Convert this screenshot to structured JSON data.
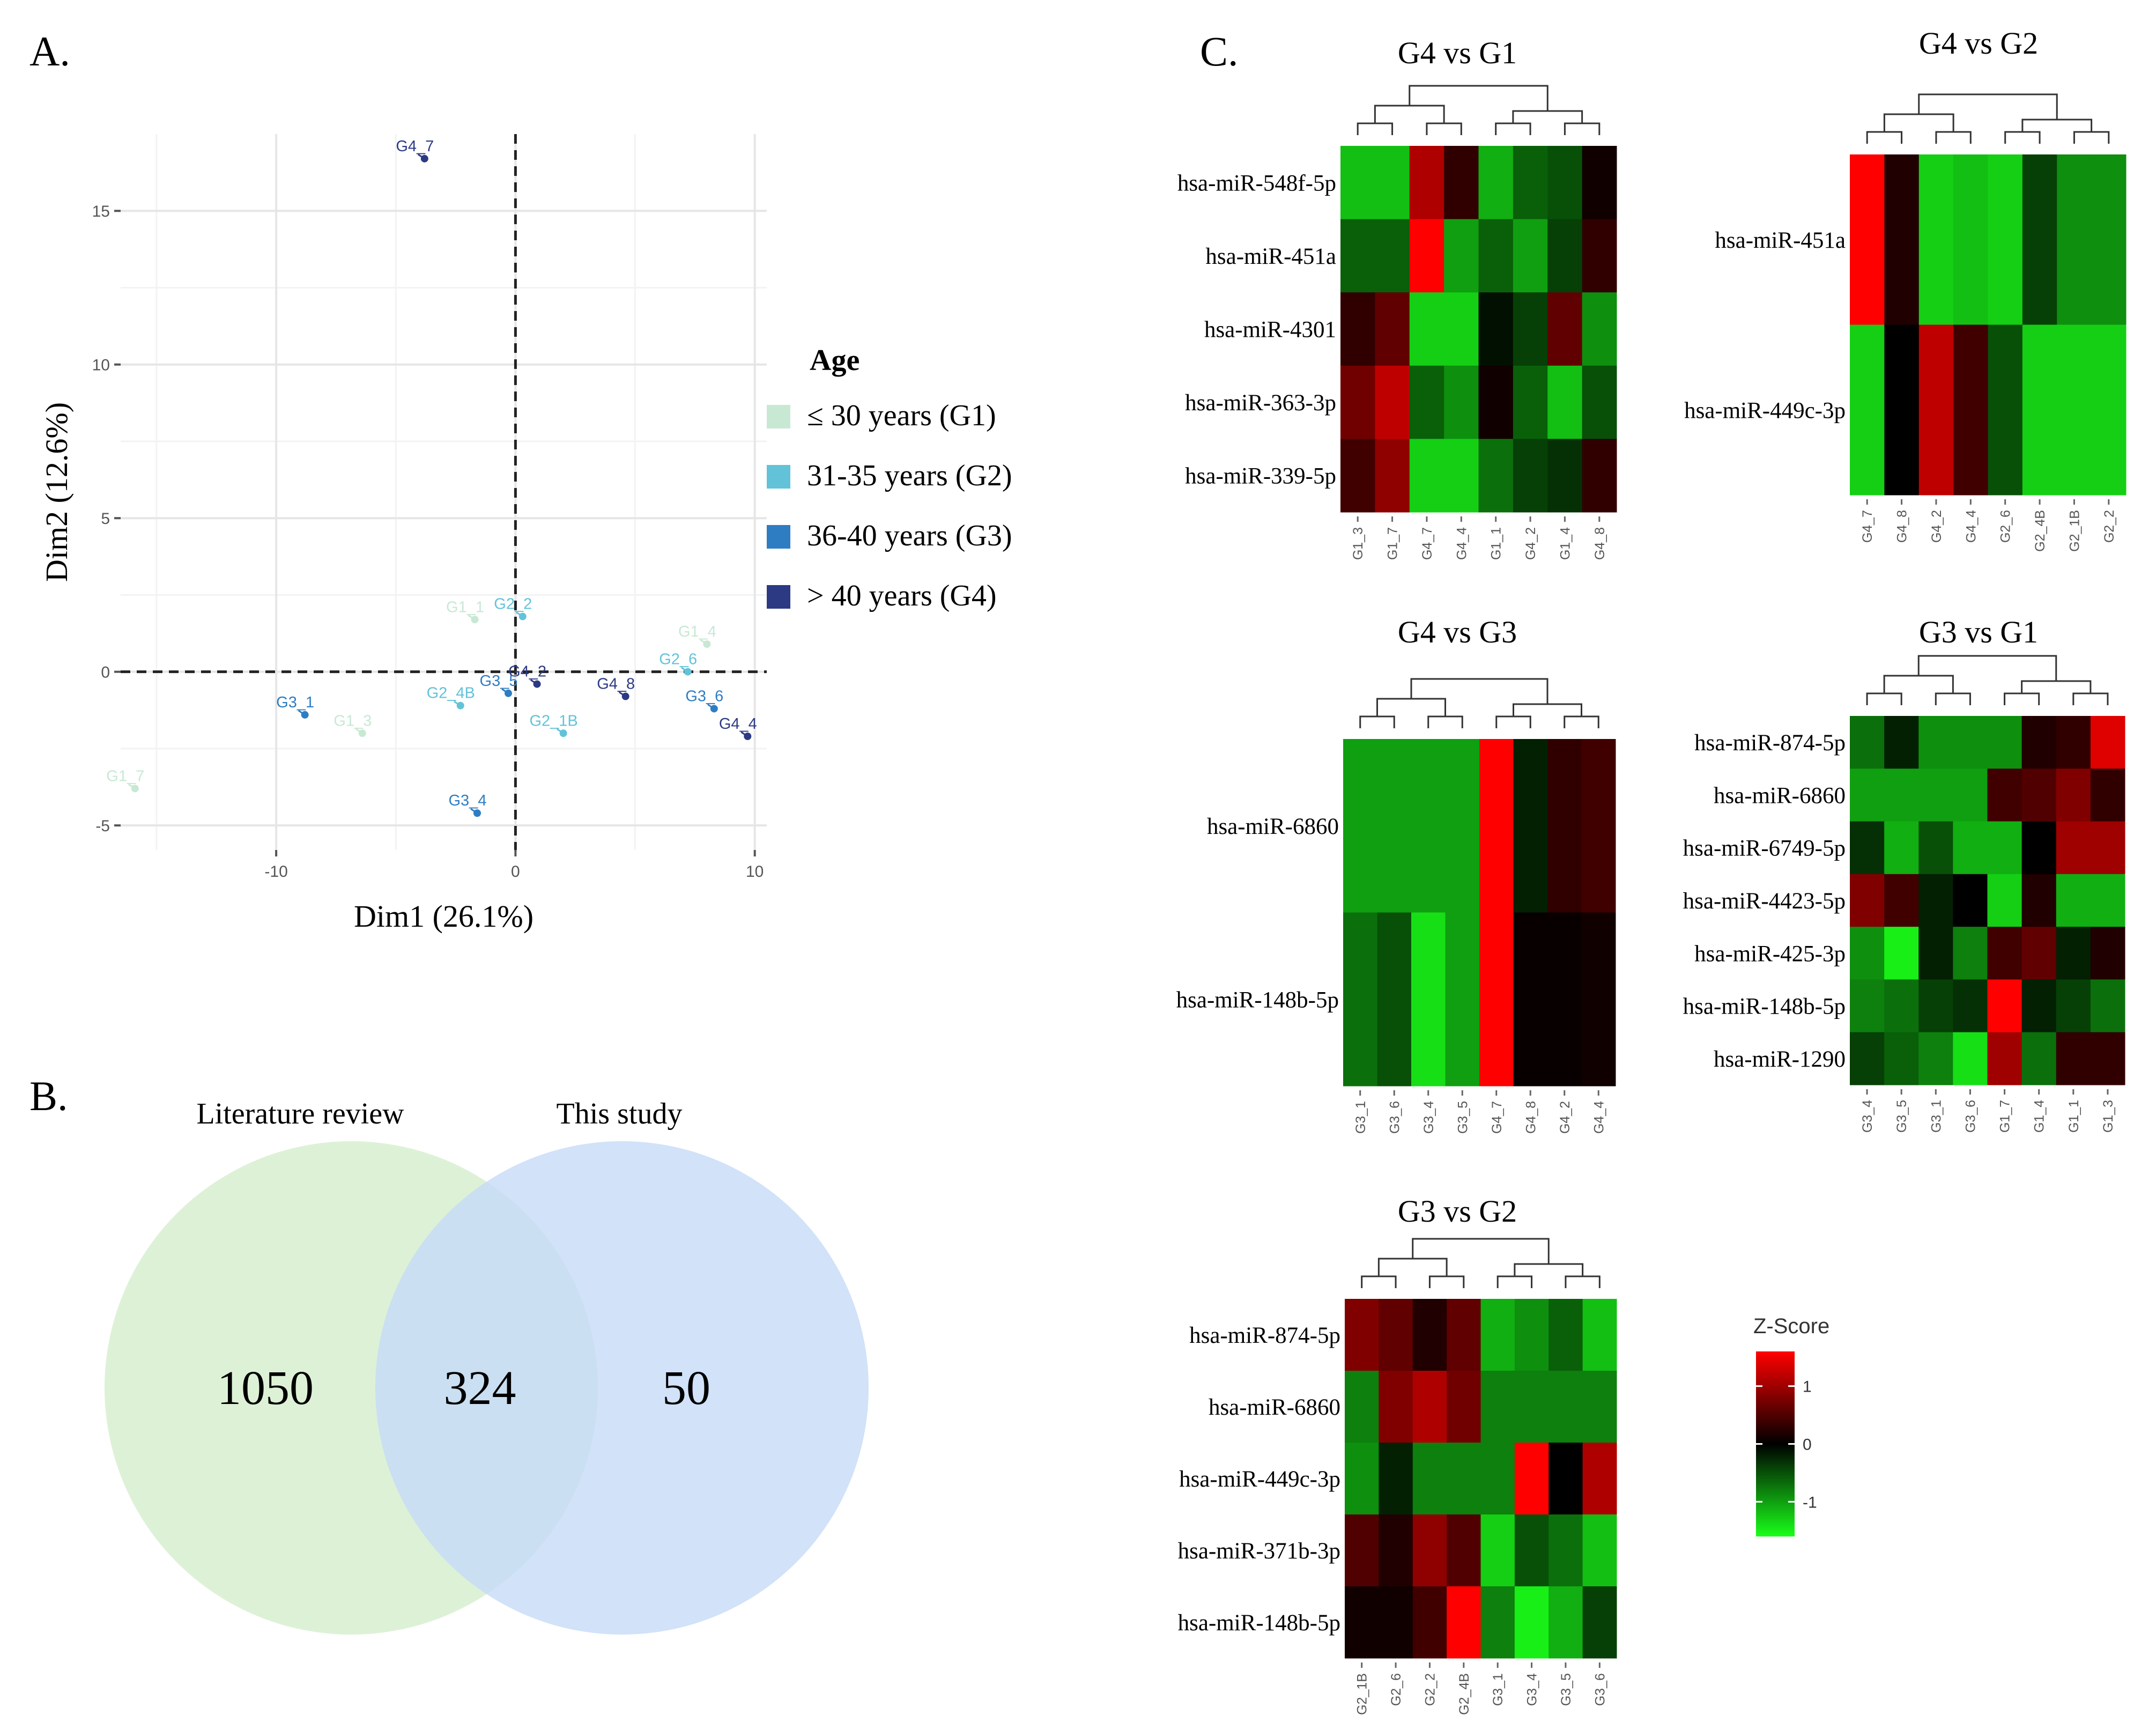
{
  "panels": {
    "a": "A.",
    "b": "B.",
    "c": "C."
  },
  "chart_data": [
    {
      "type": "scatter",
      "id": "pca",
      "xlabel": "Dim1 (26.1%)",
      "ylabel": "Dim2 (12.6%)",
      "xlim": [
        -16.5,
        10.5
      ],
      "ylim": [
        -5.8,
        17.5
      ],
      "xticks": [
        -10,
        0,
        10
      ],
      "yticks": [
        -5,
        0,
        5,
        10,
        15
      ],
      "grid": true,
      "legend": {
        "title": "Age",
        "position": "right",
        "entries": [
          {
            "group": "G1",
            "label": "≤ 30 years (G1)",
            "color": "#c7e9d4"
          },
          {
            "group": "G2",
            "label": "31-35 years (G2)",
            "color": "#62c3d8"
          },
          {
            "group": "G3",
            "label": "36-40 years (G3)",
            "color": "#2e7dc2"
          },
          {
            "group": "G4",
            "label": "> 40 years (G4)",
            "color": "#2c3a84"
          }
        ]
      },
      "points": [
        {
          "label": "G4_7",
          "group": "G4",
          "x": -3.8,
          "y": 16.7
        },
        {
          "label": "G1_1",
          "group": "G1",
          "x": -1.7,
          "y": 1.7
        },
        {
          "label": "G2_2",
          "group": "G2",
          "x": 0.3,
          "y": 1.8
        },
        {
          "label": "G1_4",
          "group": "G1",
          "x": 8.0,
          "y": 0.9
        },
        {
          "label": "G2_6",
          "group": "G2",
          "x": 7.2,
          "y": 0.0
        },
        {
          "label": "G4_2",
          "group": "G4",
          "x": 0.9,
          "y": -0.4
        },
        {
          "label": "G3_5",
          "group": "G3",
          "x": -0.3,
          "y": -0.7
        },
        {
          "label": "G2_4B",
          "group": "G2",
          "x": -2.3,
          "y": -1.1
        },
        {
          "label": "G4_8",
          "group": "G4",
          "x": 4.6,
          "y": -0.8
        },
        {
          "label": "G3_6",
          "group": "G3",
          "x": 8.3,
          "y": -1.2
        },
        {
          "label": "G4_4",
          "group": "G4",
          "x": 9.7,
          "y": -2.1
        },
        {
          "label": "G3_1",
          "group": "G3",
          "x": -8.8,
          "y": -1.4
        },
        {
          "label": "G1_3",
          "group": "G1",
          "x": -6.4,
          "y": -2.0
        },
        {
          "label": "G2_1B",
          "group": "G2",
          "x": 2.0,
          "y": -2.0
        },
        {
          "label": "G1_7",
          "group": "G1",
          "x": -15.9,
          "y": -3.8
        },
        {
          "label": "G3_4",
          "group": "G3",
          "x": -1.6,
          "y": -4.6
        }
      ]
    },
    {
      "type": "venn",
      "id": "venn",
      "sets": [
        {
          "name": "Literature review",
          "only": 1050,
          "color": "#d9f0d3"
        },
        {
          "name": "This study",
          "only": 50,
          "color": "#c6dbf7"
        }
      ],
      "intersection": 324
    },
    {
      "type": "heatmap",
      "id": "hm1",
      "title": "G4 vs G1",
      "rows": [
        "hsa-miR-548f-5p",
        "hsa-miR-451a",
        "hsa-miR-4301",
        "hsa-miR-363-3p",
        "hsa-miR-339-5p"
      ],
      "columns": [
        "G1_3",
        "G1_7",
        "G4_7",
        "G4_4",
        "G1_1",
        "G4_2",
        "G1_4",
        "G4_8"
      ],
      "values": [
        [
          -1.2,
          -1.2,
          1.1,
          0.3,
          -1.1,
          -0.6,
          -0.5,
          0.1
        ],
        [
          -0.6,
          -0.6,
          1.6,
          -1.0,
          -0.6,
          -1.0,
          -0.4,
          0.3
        ],
        [
          0.3,
          0.6,
          -1.3,
          -1.3,
          -0.1,
          -0.4,
          0.6,
          -0.9
        ],
        [
          0.7,
          1.2,
          -0.6,
          -0.9,
          0.1,
          -0.6,
          -1.2,
          -0.5
        ],
        [
          0.4,
          0.9,
          -1.3,
          -1.3,
          -0.7,
          -0.4,
          -0.3,
          0.3
        ]
      ]
    },
    {
      "type": "heatmap",
      "id": "hm2",
      "title": "G4 vs G2",
      "rows": [
        "hsa-miR-451a",
        "hsa-miR-449c-3p"
      ],
      "columns": [
        "G4_7",
        "G4_8",
        "G4_2",
        "G4_4",
        "G2_6",
        "G2_4B",
        "G2_1B",
        "G2_2"
      ],
      "values": [
        [
          1.6,
          0.2,
          -1.3,
          -1.2,
          -1.3,
          -0.4,
          -0.9,
          -0.9
        ],
        [
          -1.3,
          0.0,
          1.2,
          0.4,
          -0.5,
          -1.3,
          -1.3,
          -1.3
        ]
      ]
    },
    {
      "type": "heatmap",
      "id": "hm3",
      "title": "G4 vs G3",
      "rows": [
        "hsa-miR-6860",
        "hsa-miR-148b-5p"
      ],
      "columns": [
        "G3_1",
        "G3_6",
        "G3_4",
        "G3_5",
        "G4_7",
        "G4_8",
        "G4_2",
        "G4_4"
      ],
      "values": [
        [
          -1.0,
          -1.0,
          -1.0,
          -1.0,
          1.7,
          -0.2,
          0.3,
          0.4
        ],
        [
          -0.7,
          -0.5,
          -1.4,
          -1.0,
          1.7,
          0.05,
          0.05,
          0.1
        ]
      ]
    },
    {
      "type": "heatmap",
      "id": "hm4",
      "title": "G3 vs G1",
      "rows": [
        "hsa-miR-874-5p",
        "hsa-miR-6860",
        "hsa-miR-6749-5p",
        "hsa-miR-4423-5p",
        "hsa-miR-425-3p",
        "hsa-miR-148b-5p",
        "hsa-miR-1290"
      ],
      "columns": [
        "G3_4",
        "G3_5",
        "G3_1",
        "G3_6",
        "G1_7",
        "G1_4",
        "G1_1",
        "G1_3"
      ],
      "values": [
        [
          -0.7,
          -0.2,
          -0.9,
          -0.9,
          -0.9,
          0.2,
          0.3,
          1.4
        ],
        [
          -1.0,
          -1.0,
          -1.0,
          -1.0,
          0.4,
          0.5,
          0.8,
          0.3
        ],
        [
          -0.3,
          -1.1,
          -0.5,
          -1.1,
          -1.1,
          0.0,
          1.0,
          1.0
        ],
        [
          0.8,
          0.4,
          -0.2,
          0.0,
          -1.3,
          0.2,
          -1.1,
          -1.1
        ],
        [
          -0.9,
          -1.5,
          -0.2,
          -0.8,
          0.4,
          0.6,
          -0.2,
          0.2
        ],
        [
          -0.8,
          -0.7,
          -0.4,
          -0.3,
          1.8,
          -0.2,
          -0.4,
          -0.7
        ],
        [
          -0.4,
          -0.6,
          -0.8,
          -1.4,
          1.0,
          -0.7,
          0.3,
          0.3
        ]
      ]
    },
    {
      "type": "heatmap",
      "id": "hm5",
      "title": "G3 vs G2",
      "rows": [
        "hsa-miR-874-5p",
        "hsa-miR-6860",
        "hsa-miR-449c-3p",
        "hsa-miR-371b-3p",
        "hsa-miR-148b-5p"
      ],
      "columns": [
        "G2_1B",
        "G2_6",
        "G2_2",
        "G2_4B",
        "G3_1",
        "G3_4",
        "G3_5",
        "G3_6"
      ],
      "values": [
        [
          0.8,
          0.6,
          0.2,
          0.6,
          -1.1,
          -0.9,
          -0.6,
          -1.2
        ],
        [
          -0.8,
          0.8,
          1.1,
          0.7,
          -0.8,
          -0.8,
          -0.8,
          -0.8
        ],
        [
          -0.9,
          -0.2,
          -0.8,
          -0.8,
          -0.8,
          1.6,
          0.0,
          1.1
        ],
        [
          0.5,
          0.2,
          0.9,
          0.5,
          -1.3,
          -0.5,
          -0.7,
          -1.2
        ],
        [
          0.1,
          0.1,
          0.4,
          1.6,
          -0.8,
          -1.5,
          -1.1,
          -0.4
        ]
      ]
    },
    {
      "type": "colorbar",
      "id": "zscore",
      "title": "Z-Score",
      "ticks": [
        "1",
        "0",
        "-1"
      ],
      "tick_values": [
        1,
        0,
        -1
      ],
      "range": [
        -1.6,
        1.6
      ],
      "colors": {
        "low": "#19ff19",
        "mid": "#000000",
        "high": "#ff0000"
      }
    }
  ]
}
